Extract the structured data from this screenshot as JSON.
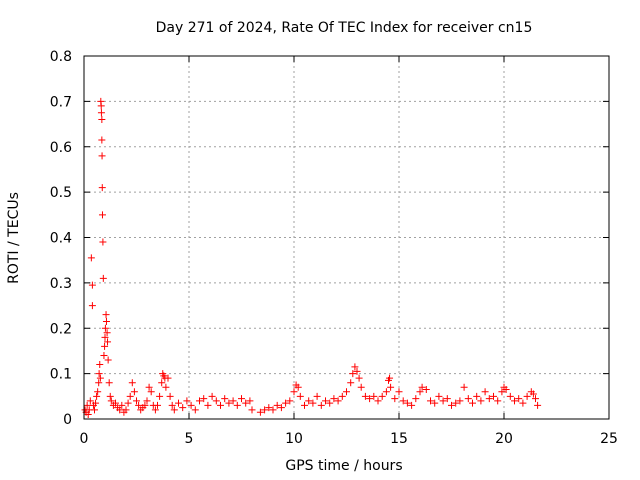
{
  "chart_data": {
    "type": "scatter",
    "title": "Day 271 of 2024, Rate Of TEC Index for receiver cn15",
    "xlabel": "GPS time / hours",
    "ylabel": "ROTI / TECUs",
    "xlim": [
      0,
      25
    ],
    "ylim": [
      0,
      0.8
    ],
    "xticks": [
      0,
      5,
      10,
      15,
      20,
      25
    ],
    "yticks": [
      0,
      0.1,
      0.2,
      0.3,
      0.4,
      0.5,
      0.6,
      0.7,
      0.8
    ],
    "grid": true,
    "marker": "+",
    "color": "#ff0000",
    "series": [
      {
        "name": "",
        "points": [
          [
            0.05,
            0.02
          ],
          [
            0.1,
            0.015
          ],
          [
            0.15,
            0.03
          ],
          [
            0.2,
            0.01
          ],
          [
            0.25,
            0.02
          ],
          [
            0.3,
            0.04
          ],
          [
            0.35,
            0.355
          ],
          [
            0.4,
            0.295
          ],
          [
            0.4,
            0.25
          ],
          [
            0.45,
            0.03
          ],
          [
            0.5,
            0.02
          ],
          [
            0.55,
            0.035
          ],
          [
            0.6,
            0.05
          ],
          [
            0.65,
            0.06
          ],
          [
            0.7,
            0.08
          ],
          [
            0.72,
            0.1
          ],
          [
            0.75,
            0.12
          ],
          [
            0.78,
            0.09
          ],
          [
            0.8,
            0.7
          ],
          [
            0.82,
            0.69
          ],
          [
            0.83,
            0.675
          ],
          [
            0.85,
            0.66
          ],
          [
            0.85,
            0.615
          ],
          [
            0.86,
            0.58
          ],
          [
            0.87,
            0.51
          ],
          [
            0.88,
            0.45
          ],
          [
            0.9,
            0.39
          ],
          [
            0.92,
            0.31
          ],
          [
            0.95,
            0.14
          ],
          [
            0.98,
            0.16
          ],
          [
            1.0,
            0.18
          ],
          [
            1.02,
            0.2
          ],
          [
            1.05,
            0.23
          ],
          [
            1.07,
            0.215
          ],
          [
            1.1,
            0.19
          ],
          [
            1.12,
            0.17
          ],
          [
            1.15,
            0.13
          ],
          [
            1.2,
            0.08
          ],
          [
            1.25,
            0.05
          ],
          [
            1.3,
            0.04
          ],
          [
            1.4,
            0.03
          ],
          [
            1.5,
            0.035
          ],
          [
            1.6,
            0.025
          ],
          [
            1.7,
            0.02
          ],
          [
            1.8,
            0.03
          ],
          [
            1.9,
            0.015
          ],
          [
            2.0,
            0.02
          ],
          [
            2.1,
            0.035
          ],
          [
            2.2,
            0.05
          ],
          [
            2.3,
            0.08
          ],
          [
            2.4,
            0.06
          ],
          [
            2.5,
            0.04
          ],
          [
            2.6,
            0.03
          ],
          [
            2.7,
            0.02
          ],
          [
            2.8,
            0.025
          ],
          [
            2.9,
            0.03
          ],
          [
            3.0,
            0.04
          ],
          [
            3.1,
            0.07
          ],
          [
            3.2,
            0.06
          ],
          [
            3.3,
            0.03
          ],
          [
            3.4,
            0.02
          ],
          [
            3.5,
            0.03
          ],
          [
            3.6,
            0.05
          ],
          [
            3.7,
            0.08
          ],
          [
            3.75,
            0.1
          ],
          [
            3.8,
            0.095
          ],
          [
            3.85,
            0.09
          ],
          [
            3.9,
            0.07
          ],
          [
            4.0,
            0.09
          ],
          [
            4.1,
            0.05
          ],
          [
            4.2,
            0.03
          ],
          [
            4.3,
            0.02
          ],
          [
            4.5,
            0.035
          ],
          [
            4.7,
            0.025
          ],
          [
            4.9,
            0.04
          ],
          [
            5.1,
            0.03
          ],
          [
            5.3,
            0.02
          ],
          [
            5.5,
            0.04
          ],
          [
            5.7,
            0.045
          ],
          [
            5.9,
            0.03
          ],
          [
            6.1,
            0.05
          ],
          [
            6.3,
            0.04
          ],
          [
            6.5,
            0.03
          ],
          [
            6.7,
            0.045
          ],
          [
            6.9,
            0.035
          ],
          [
            7.1,
            0.04
          ],
          [
            7.3,
            0.03
          ],
          [
            7.5,
            0.045
          ],
          [
            7.7,
            0.035
          ],
          [
            7.9,
            0.04
          ],
          [
            8.0,
            0.02
          ],
          [
            8.4,
            0.015
          ],
          [
            8.6,
            0.02
          ],
          [
            8.8,
            0.025
          ],
          [
            9.0,
            0.02
          ],
          [
            9.2,
            0.03
          ],
          [
            9.4,
            0.025
          ],
          [
            9.6,
            0.035
          ],
          [
            9.8,
            0.04
          ],
          [
            10.0,
            0.06
          ],
          [
            10.1,
            0.075
          ],
          [
            10.2,
            0.07
          ],
          [
            10.3,
            0.05
          ],
          [
            10.5,
            0.03
          ],
          [
            10.7,
            0.04
          ],
          [
            10.9,
            0.035
          ],
          [
            11.1,
            0.05
          ],
          [
            11.3,
            0.03
          ],
          [
            11.5,
            0.04
          ],
          [
            11.7,
            0.035
          ],
          [
            11.9,
            0.045
          ],
          [
            12.1,
            0.04
          ],
          [
            12.3,
            0.05
          ],
          [
            12.5,
            0.06
          ],
          [
            12.7,
            0.08
          ],
          [
            12.8,
            0.1
          ],
          [
            12.9,
            0.115
          ],
          [
            13.0,
            0.105
          ],
          [
            13.1,
            0.09
          ],
          [
            13.2,
            0.07
          ],
          [
            13.4,
            0.05
          ],
          [
            13.6,
            0.045
          ],
          [
            13.8,
            0.05
          ],
          [
            14.0,
            0.04
          ],
          [
            14.2,
            0.05
          ],
          [
            14.4,
            0.06
          ],
          [
            14.5,
            0.085
          ],
          [
            14.55,
            0.09
          ],
          [
            14.6,
            0.07
          ],
          [
            14.8,
            0.045
          ],
          [
            15.0,
            0.06
          ],
          [
            15.2,
            0.04
          ],
          [
            15.4,
            0.035
          ],
          [
            15.6,
            0.03
          ],
          [
            15.8,
            0.045
          ],
          [
            16.0,
            0.06
          ],
          [
            16.1,
            0.07
          ],
          [
            16.3,
            0.065
          ],
          [
            16.5,
            0.04
          ],
          [
            16.7,
            0.035
          ],
          [
            16.9,
            0.05
          ],
          [
            17.1,
            0.04
          ],
          [
            17.3,
            0.045
          ],
          [
            17.5,
            0.03
          ],
          [
            17.7,
            0.035
          ],
          [
            17.9,
            0.04
          ],
          [
            18.1,
            0.07
          ],
          [
            18.3,
            0.045
          ],
          [
            18.5,
            0.035
          ],
          [
            18.7,
            0.05
          ],
          [
            18.9,
            0.04
          ],
          [
            19.1,
            0.06
          ],
          [
            19.3,
            0.045
          ],
          [
            19.5,
            0.05
          ],
          [
            19.7,
            0.04
          ],
          [
            19.9,
            0.06
          ],
          [
            20.0,
            0.07
          ],
          [
            20.1,
            0.065
          ],
          [
            20.3,
            0.05
          ],
          [
            20.5,
            0.04
          ],
          [
            20.7,
            0.045
          ],
          [
            20.9,
            0.035
          ],
          [
            21.1,
            0.05
          ],
          [
            21.3,
            0.06
          ],
          [
            21.4,
            0.055
          ],
          [
            21.5,
            0.045
          ],
          [
            21.6,
            0.03
          ]
        ]
      }
    ]
  }
}
